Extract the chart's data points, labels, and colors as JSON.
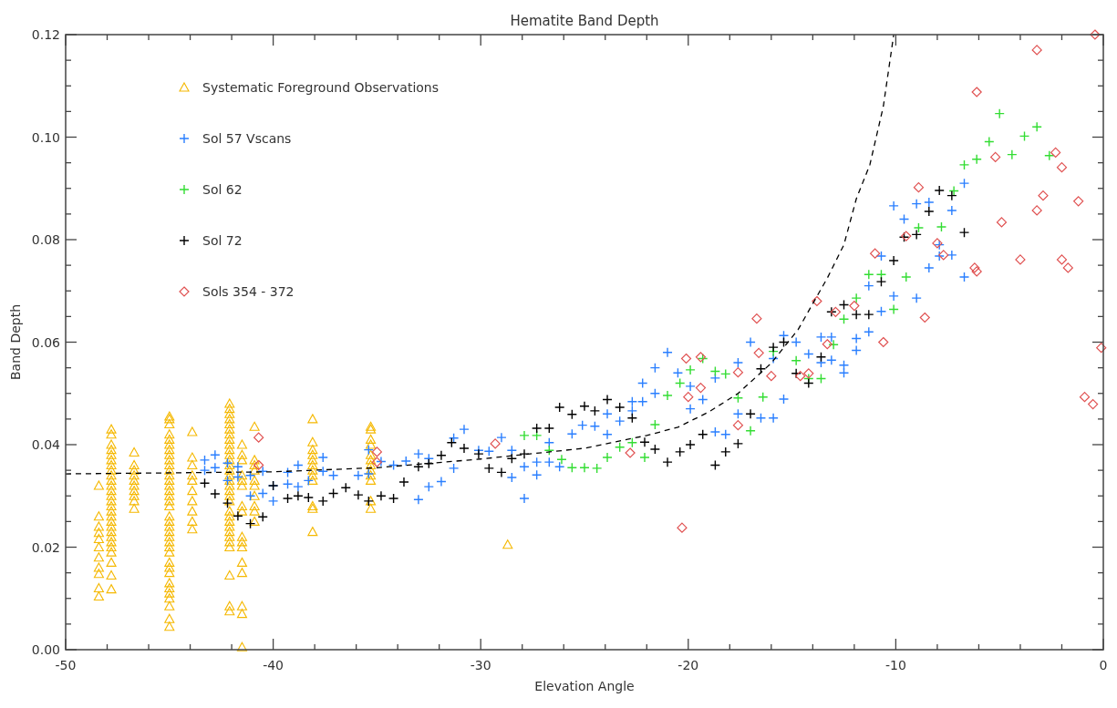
{
  "chart_data": {
    "type": "scatter",
    "title": "Hematite Band Depth",
    "xlabel": "Elevation Angle",
    "ylabel": "Band Depth",
    "xlim": [
      -50,
      0
    ],
    "ylim": [
      0,
      0.12
    ],
    "xticks": [
      -50,
      {
        "value": -48,
        "label": null
      },
      {
        "value": -46,
        "label": null
      },
      {
        "value": -44,
        "label": null
      },
      {
        "value": -42,
        "label": null
      },
      -40,
      {
        "value": -38,
        "label": null
      },
      {
        "value": -36,
        "label": null
      },
      {
        "value": -34,
        "label": null
      },
      {
        "value": -32,
        "label": null
      },
      -30,
      {
        "value": -28,
        "label": null
      },
      {
        "value": -26,
        "label": null
      },
      {
        "value": -24,
        "label": null
      },
      {
        "value": -22,
        "label": null
      },
      -20,
      {
        "value": -18,
        "label": null
      },
      {
        "value": -16,
        "label": null
      },
      {
        "value": -14,
        "label": null
      },
      {
        "value": -12,
        "label": null
      },
      -10,
      {
        "value": -8,
        "label": null
      },
      {
        "value": -6,
        "label": null
      },
      {
        "value": -4,
        "label": null
      },
      {
        "value": -2,
        "label": null
      },
      0
    ],
    "yticks": [
      {
        "value": 0,
        "label": "0.00"
      },
      {
        "value": 0.005,
        "label": null
      },
      {
        "value": 0.01,
        "label": null
      },
      {
        "value": 0.015,
        "label": null
      },
      {
        "value": 0.02,
        "label": "0.02"
      },
      {
        "value": 0.025,
        "label": null
      },
      {
        "value": 0.03,
        "label": null
      },
      {
        "value": 0.035,
        "label": null
      },
      {
        "value": 0.04,
        "label": "0.04"
      },
      {
        "value": 0.045,
        "label": null
      },
      {
        "value": 0.05,
        "label": null
      },
      {
        "value": 0.055,
        "label": null
      },
      {
        "value": 0.06,
        "label": "0.06"
      },
      {
        "value": 0.065,
        "label": null
      },
      {
        "value": 0.07,
        "label": null
      },
      {
        "value": 0.075,
        "label": null
      },
      {
        "value": 0.08,
        "label": "0.08"
      },
      {
        "value": 0.085,
        "label": null
      },
      {
        "value": 0.09,
        "label": null
      },
      {
        "value": 0.095,
        "label": null
      },
      {
        "value": 0.1,
        "label": "0.10"
      },
      {
        "value": 0.105,
        "label": null
      },
      {
        "value": 0.11,
        "label": null
      },
      {
        "value": 0.115,
        "label": null
      },
      {
        "value": 0.12,
        "label": "0.12"
      }
    ],
    "grid": false,
    "legend": "top left",
    "series": [
      {
        "name": "Systematic Foreground Observations",
        "color": "#f5b800",
        "marker": "triangle",
        "x": [
          -48.4,
          -48.4,
          -48.4,
          -48.4,
          -48.4,
          -48.4,
          -48.4,
          -48.4,
          -48.4,
          -48.4,
          -48.4,
          -47.8,
          -47.8,
          -47.8,
          -47.8,
          -47.8,
          -47.8,
          -47.8,
          -47.8,
          -47.8,
          -47.8,
          -47.8,
          -47.8,
          -47.8,
          -47.8,
          -47.8,
          -47.8,
          -47.8,
          -47.8,
          -47.8,
          -47.8,
          -47.8,
          -47.8,
          -47.8,
          -47.8,
          -47.8,
          -47.8,
          -47.8,
          -46.7,
          -46.7,
          -46.7,
          -46.7,
          -46.7,
          -46.7,
          -46.7,
          -46.7,
          -46.7,
          -46.7,
          -45,
          -45,
          -45,
          -45,
          -45,
          -45,
          -45,
          -45,
          -45,
          -45,
          -45,
          -45,
          -45,
          -45,
          -45,
          -45,
          -45,
          -45,
          -45,
          -45,
          -45,
          -45,
          -45,
          -45,
          -45,
          -45,
          -45,
          -45,
          -45,
          -45,
          -45,
          -45,
          -45,
          -45,
          -45,
          -45,
          -43.9,
          -43.9,
          -43.9,
          -43.9,
          -43.9,
          -43.9,
          -43.9,
          -43.9,
          -43.9,
          -43.9,
          -42.1,
          -42.1,
          -42.1,
          -42.1,
          -42.1,
          -42.1,
          -42.1,
          -42.1,
          -42.1,
          -42.1,
          -42.1,
          -42.1,
          -42.1,
          -42.1,
          -42.1,
          -42.1,
          -42.1,
          -42.1,
          -42.1,
          -42.1,
          -42.1,
          -42.1,
          -42.1,
          -42.1,
          -42.1,
          -42.1,
          -42.1,
          -42.1,
          -42.1,
          -42.1,
          -42.1,
          -41.5,
          -41.5,
          -41.5,
          -41.5,
          -41.5,
          -41.5,
          -41.5,
          -41.5,
          -41.5,
          -41.5,
          -41.5,
          -41.5,
          -41.5,
          -41.5,
          -41.5,
          -41.5,
          -40.9,
          -40.9,
          -40.9,
          -40.9,
          -40.9,
          -40.9,
          -40.9,
          -40.9,
          -40.9,
          -40.9,
          -38.1,
          -38.1,
          -38.1,
          -38.1,
          -38.1,
          -38.1,
          -38.1,
          -38.1,
          -38.1,
          -38.1,
          -38.1,
          -38.1,
          -35.3,
          -35.3,
          -35.3,
          -35.3,
          -35.3,
          -35.3,
          -35.3,
          -35.3,
          -35.3,
          -35.3,
          -35.3,
          -35.3,
          -28.7
        ],
        "values": [
          0.0104,
          0.012,
          0.0148,
          0.016,
          0.018,
          0.02,
          0.0216,
          0.0228,
          0.024,
          0.026,
          0.032,
          0.043,
          0.042,
          0.04,
          0.039,
          0.038,
          0.037,
          0.036,
          0.035,
          0.034,
          0.033,
          0.032,
          0.031,
          0.03,
          0.029,
          0.028,
          0.027,
          0.026,
          0.025,
          0.024,
          0.023,
          0.022,
          0.021,
          0.02,
          0.019,
          0.017,
          0.0145,
          0.0118,
          0.0385,
          0.036,
          0.035,
          0.034,
          0.033,
          0.032,
          0.031,
          0.03,
          0.029,
          0.0275,
          0.0455,
          0.045,
          0.044,
          0.042,
          0.041,
          0.04,
          0.039,
          0.038,
          0.037,
          0.036,
          0.035,
          0.034,
          0.033,
          0.032,
          0.031,
          0.03,
          0.029,
          0.028,
          0.026,
          0.025,
          0.024,
          0.023,
          0.022,
          0.021,
          0.02,
          0.019,
          0.017,
          0.016,
          0.015,
          0.013,
          0.012,
          0.011,
          0.01,
          0.0085,
          0.006,
          0.0045,
          0.0425,
          0.0375,
          0.036,
          0.034,
          0.033,
          0.031,
          0.029,
          0.027,
          0.025,
          0.0235,
          0.048,
          0.047,
          0.046,
          0.045,
          0.044,
          0.043,
          0.042,
          0.041,
          0.04,
          0.039,
          0.038,
          0.037,
          0.036,
          0.035,
          0.034,
          0.033,
          0.032,
          0.031,
          0.03,
          0.029,
          0.027,
          0.026,
          0.025,
          0.024,
          0.023,
          0.022,
          0.021,
          0.02,
          0.0145,
          0.0085,
          0.0075,
          0.04,
          0.038,
          0.037,
          0.034,
          0.033,
          0.032,
          0.028,
          0.027,
          0.022,
          0.021,
          0.02,
          0.017,
          0.015,
          0.0085,
          0.007,
          0.0005,
          0.0435,
          0.037,
          0.036,
          0.035,
          0.033,
          0.032,
          0.03,
          0.028,
          0.027,
          0.025,
          0.045,
          0.0405,
          0.039,
          0.038,
          0.037,
          0.036,
          0.035,
          0.034,
          0.033,
          0.028,
          0.0275,
          0.023,
          0.0435,
          0.043,
          0.041,
          0.04,
          0.038,
          0.037,
          0.036,
          0.035,
          0.034,
          0.033,
          0.029,
          0.0275,
          0.0205
        ]
      },
      {
        "name": "Sol 57 Vscans",
        "color": "#2a7fff",
        "marker": "cross",
        "x": [
          -43.3,
          -43.3,
          -42.8,
          -42.8,
          -42.2,
          -42.2,
          -41.7,
          -41.7,
          -41.1,
          -41.1,
          -40.5,
          -40.5,
          -40,
          -40,
          -39.3,
          -39.3,
          -38.8,
          -38.8,
          -38.3,
          -37.6,
          -37.6,
          -37.1,
          -35.9,
          -35.4,
          -35.4,
          -34.8,
          -34.2,
          -33.6,
          -33,
          -33,
          -32.5,
          -32.5,
          -31.9,
          -31.3,
          -31.3,
          -30.8,
          -30.1,
          -29.6,
          -29,
          -28.5,
          -28.5,
          -27.9,
          -27.9,
          -27.3,
          -27.3,
          -26.7,
          -26.7,
          -26.2,
          -25.6,
          -25.1,
          -24.5,
          -23.9,
          -23.9,
          -23.3,
          -22.7,
          -22.7,
          -22.2,
          -22.2,
          -21.6,
          -21.6,
          -21,
          -20.5,
          -19.9,
          -19.9,
          -19.3,
          -18.7,
          -18.7,
          -18.2,
          -17.6,
          -17.6,
          -17,
          -16.5,
          -15.9,
          -15.9,
          -15.4,
          -15.4,
          -14.8,
          -14.2,
          -13.6,
          -13.6,
          -13.1,
          -13.1,
          -12.5,
          -12.5,
          -11.9,
          -11.9,
          -11.3,
          -11.3,
          -10.7,
          -10.7,
          -10.1,
          -10.1,
          -9.6,
          -9,
          -9,
          -8.4,
          -8.4,
          -7.9,
          -7.9,
          -7.3,
          -7.3,
          -6.7,
          -6.7
        ],
        "values": [
          0.037,
          0.035,
          0.038,
          0.0355,
          0.0364,
          0.033,
          0.0357,
          0.0337,
          0.034,
          0.03,
          0.0348,
          0.0305,
          0.032,
          0.029,
          0.0346,
          0.0323,
          0.036,
          0.0318,
          0.033,
          0.0375,
          0.0348,
          0.034,
          0.034,
          0.039,
          0.0343,
          0.0367,
          0.036,
          0.0368,
          0.0382,
          0.0293,
          0.0373,
          0.0318,
          0.0328,
          0.0413,
          0.0354,
          0.043,
          0.0389,
          0.0387,
          0.0414,
          0.0389,
          0.0336,
          0.0357,
          0.0295,
          0.0366,
          0.0341,
          0.0404,
          0.0366,
          0.0357,
          0.0421,
          0.0438,
          0.0436,
          0.046,
          0.042,
          0.0446,
          0.0484,
          0.0466,
          0.052,
          0.0484,
          0.055,
          0.05,
          0.058,
          0.054,
          0.0514,
          0.047,
          0.0488,
          0.053,
          0.0425,
          0.042,
          0.056,
          0.046,
          0.06,
          0.0452,
          0.0452,
          0.0568,
          0.0613,
          0.0489,
          0.06,
          0.0577,
          0.061,
          0.056,
          0.061,
          0.0565,
          0.0555,
          0.054,
          0.0607,
          0.0584,
          0.062,
          0.071,
          0.0768,
          0.066,
          0.069,
          0.0866,
          0.084,
          0.0686,
          0.087,
          0.0873,
          0.0745,
          0.079,
          0.0768,
          0.0857,
          0.077,
          0.0727,
          0.091
        ]
      },
      {
        "name": "Sol 62",
        "color": "#33dd33",
        "marker": "cross",
        "x": [
          -27.9,
          -27.3,
          -26.7,
          -26.1,
          -25.6,
          -25,
          -24.4,
          -23.9,
          -23.3,
          -22.7,
          -22.1,
          -21.6,
          -21,
          -20.4,
          -19.9,
          -19.3,
          -18.7,
          -18.2,
          -17.6,
          -17,
          -16.4,
          -15.9,
          -14.8,
          -14.2,
          -13.6,
          -13,
          -12.5,
          -11.9,
          -11.3,
          -10.7,
          -10.1,
          -9.5,
          -8.9,
          -7.8,
          -7.2,
          -6.7,
          -6.1,
          -5.5,
          -5,
          -4.4,
          -3.8,
          -3.2,
          -2.6
        ],
        "values": [
          0.0418,
          0.0418,
          0.0389,
          0.0371,
          0.0355,
          0.0355,
          0.0354,
          0.0375,
          0.0395,
          0.0404,
          0.0375,
          0.0439,
          0.0496,
          0.052,
          0.0546,
          0.0568,
          0.0543,
          0.0538,
          0.0491,
          0.0427,
          0.0493,
          0.0582,
          0.0564,
          0.0529,
          0.0529,
          0.0595,
          0.0645,
          0.0686,
          0.0732,
          0.0732,
          0.0664,
          0.0727,
          0.0823,
          0.0825,
          0.0895,
          0.0946,
          0.0957,
          0.0991,
          0.1046,
          0.0966,
          0.1002,
          0.102,
          0.0964
        ]
      },
      {
        "name": "Sol 72",
        "color": "#000000",
        "marker": "cross",
        "x": [
          -43.3,
          -42.8,
          -42.2,
          -41.7,
          -41.1,
          -40.5,
          -40,
          -39.3,
          -38.8,
          -38.3,
          -37.6,
          -37.1,
          -36.5,
          -35.9,
          -35.4,
          -34.8,
          -34.2,
          -33.7,
          -33,
          -32.5,
          -31.9,
          -31.4,
          -30.8,
          -30.1,
          -29.6,
          -29,
          -28.5,
          -27.9,
          -27.3,
          -26.7,
          -26.2,
          -25.6,
          -25,
          -24.5,
          -23.9,
          -23.3,
          -22.7,
          -22.1,
          -21.6,
          -21,
          -20.4,
          -19.9,
          -19.3,
          -18.7,
          -18.2,
          -17.6,
          -17,
          -16.5,
          -15.9,
          -15.4,
          -14.8,
          -14.2,
          -13.6,
          -13.1,
          -12.5,
          -11.9,
          -11.3,
          -10.7,
          -10.1,
          -9.6,
          -9,
          -8.4,
          -7.9,
          -7.3,
          -6.7
        ],
        "values": [
          0.0325,
          0.0304,
          0.0286,
          0.0261,
          0.0246,
          0.0259,
          0.032,
          0.0295,
          0.03,
          0.0297,
          0.029,
          0.0305,
          0.0316,
          0.0302,
          0.029,
          0.03,
          0.0295,
          0.0327,
          0.0357,
          0.0363,
          0.0379,
          0.0404,
          0.0393,
          0.0382,
          0.0354,
          0.0346,
          0.0373,
          0.0382,
          0.0432,
          0.0432,
          0.0473,
          0.0459,
          0.0475,
          0.0466,
          0.0488,
          0.0473,
          0.0452,
          0.0405,
          0.0391,
          0.0366,
          0.0386,
          0.04,
          0.042,
          0.036,
          0.0386,
          0.0402,
          0.046,
          0.0548,
          0.059,
          0.06,
          0.0539,
          0.052,
          0.0571,
          0.0659,
          0.0673,
          0.0654,
          0.0654,
          0.0718,
          0.0759,
          0.0805,
          0.081,
          0.0855,
          0.0896,
          0.0886,
          0.0814
        ]
      },
      {
        "name": "Sols 354 - 372",
        "color": "#e05050",
        "marker": "diamond",
        "x": [
          -40.7,
          -40.7,
          -35,
          -35,
          -29.3,
          -22.8,
          -20.3,
          -20.1,
          -19.4,
          -19.4,
          -20,
          -17.6,
          -17.6,
          -16.7,
          -16.6,
          -16,
          -14.2,
          -14.6,
          -13.8,
          -13.3,
          -12.9,
          -12,
          -10.6,
          -11,
          -9.5,
          -8.6,
          -8,
          -7.7,
          -6.2,
          -6.1,
          -4.9,
          -4,
          -3.2,
          -2,
          -1.7,
          -1.2,
          -0.9,
          -0.5,
          -0.1,
          -8.9,
          -6.1,
          -5.2,
          -3.2,
          -2.9,
          -2.3,
          -2,
          -0.4
        ],
        "values": [
          0.0414,
          0.036,
          0.0386,
          0.0366,
          0.0402,
          0.0384,
          0.0238,
          0.0568,
          0.0571,
          0.0511,
          0.0493,
          0.0438,
          0.0541,
          0.0646,
          0.0579,
          0.0534,
          0.0539,
          0.0534,
          0.068,
          0.0596,
          0.0659,
          0.0671,
          0.06,
          0.0773,
          0.0807,
          0.0648,
          0.0793,
          0.077,
          0.0745,
          0.0738,
          0.0834,
          0.0761,
          0.0857,
          0.0761,
          0.0745,
          0.0875,
          0.0493,
          0.0479,
          0.0589,
          0.0902,
          0.1088,
          0.0961,
          0.117,
          0.0886,
          0.097,
          0.0941,
          0.12
        ]
      },
      {
        "type": "line",
        "color": "#000000",
        "line_style": "dashed",
        "marker": "none",
        "x": [
          -50,
          -40,
          -35,
          -30,
          -25,
          -22,
          -20.5,
          -19,
          -17.6,
          -16,
          -14.7,
          -13.3,
          -12.5,
          -11.9,
          -11.25,
          -10.6,
          -10.1
        ],
        "values": [
          0.0343,
          0.0347,
          0.0355,
          0.0372,
          0.0393,
          0.0418,
          0.0434,
          0.0464,
          0.05,
          0.0559,
          0.0625,
          0.0725,
          0.079,
          0.088,
          0.0946,
          0.106,
          0.12
        ]
      }
    ]
  }
}
